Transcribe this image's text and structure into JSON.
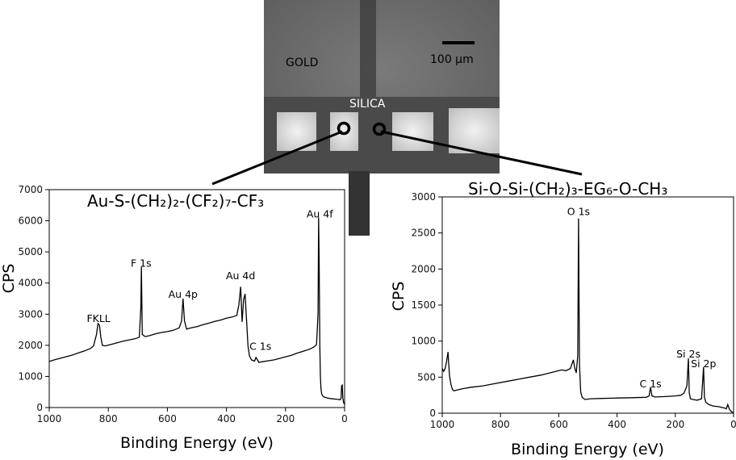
{
  "micrograph": {
    "gold_label": "GOLD",
    "silica_label": "SILICA",
    "scale_label": "100 µm"
  },
  "chart_data": [
    {
      "type": "line",
      "formula": "Au-S-(CH₂)₂-(CF₂)₇-CF₃",
      "xlabel": "Binding Energy (eV)",
      "ylabel": "CPS",
      "xlim": [
        1000,
        0
      ],
      "ylim": [
        0,
        7000
      ],
      "xticks": [
        1000,
        800,
        600,
        400,
        200,
        0
      ],
      "yticks": [
        0,
        1000,
        2000,
        3000,
        4000,
        5000,
        6000,
        7000
      ],
      "annotations": [
        {
          "text": "FKLL",
          "x": 833,
          "y": 2750
        },
        {
          "text": "F 1s",
          "x": 689,
          "y": 4520
        },
        {
          "text": "Au 4p",
          "x": 547,
          "y": 3520
        },
        {
          "text": "Au 4d",
          "x": 352,
          "y": 4120
        },
        {
          "text": "C 1s",
          "x": 285,
          "y": 1850
        },
        {
          "text": "Au 4f",
          "x": 84,
          "y": 6100
        }
      ],
      "series": [
        {
          "name": "spectrum",
          "x": [
            1000,
            980,
            960,
            940,
            920,
            900,
            880,
            860,
            850,
            840,
            835,
            830,
            825,
            820,
            810,
            790,
            770,
            750,
            730,
            710,
            695,
            690,
            688,
            685,
            675,
            660,
            640,
            620,
            600,
            580,
            560,
            552,
            547,
            542,
            535,
            520,
            500,
            480,
            460,
            440,
            420,
            400,
            380,
            365,
            358,
            352,
            347,
            342,
            337,
            333,
            327,
            322,
            315,
            305,
            300,
            290,
            280,
            260,
            240,
            220,
            200,
            180,
            160,
            140,
            120,
            105,
            95,
            90,
            88,
            86,
            84,
            82,
            80,
            78,
            75,
            70,
            60,
            50,
            40,
            30,
            20,
            15,
            12,
            10,
            8,
            6,
            3,
            0
          ],
          "y": [
            1480,
            1540,
            1590,
            1640,
            1690,
            1760,
            1820,
            1900,
            1980,
            2350,
            2700,
            2650,
            2250,
            2000,
            1980,
            2030,
            2080,
            2130,
            2170,
            2210,
            2260,
            3200,
            4520,
            2350,
            2280,
            2310,
            2370,
            2410,
            2440,
            2480,
            2560,
            2780,
            3500,
            2780,
            2520,
            2560,
            2600,
            2660,
            2710,
            2770,
            2810,
            2870,
            2910,
            2960,
            3300,
            3880,
            2750,
            3450,
            3650,
            3000,
            1980,
            1660,
            1530,
            1490,
            1610,
            1450,
            1470,
            1500,
            1530,
            1580,
            1630,
            1680,
            1750,
            1810,
            1870,
            1940,
            2020,
            3000,
            6100,
            4600,
            2000,
            1000,
            620,
            450,
            380,
            340,
            310,
            290,
            280,
            270,
            260,
            250,
            300,
            700,
            720,
            300,
            150,
            100
          ]
        }
      ]
    },
    {
      "type": "line",
      "formula": "Si-O-Si-(CH₂)₃-EG₆-O-CH₃",
      "xlabel": "Binding Energy (eV)",
      "ylabel": "CPS",
      "xlim": [
        1000,
        0
      ],
      "ylim": [
        0,
        3000
      ],
      "xticks": [
        1000,
        800,
        600,
        400,
        200,
        0
      ],
      "yticks": [
        0,
        500,
        1000,
        1500,
        2000,
        2500,
        3000
      ],
      "annotations": [
        {
          "text": "O 1s",
          "x": 532,
          "y": 2750
        },
        {
          "text": "C 1s",
          "x": 285,
          "y": 360
        },
        {
          "text": "Si 2s",
          "x": 155,
          "y": 770
        },
        {
          "text": "Si 2p",
          "x": 103,
          "y": 640
        }
      ],
      "series": [
        {
          "name": "spectrum",
          "x": [
            1000,
            995,
            990,
            985,
            980,
            978,
            975,
            970,
            965,
            960,
            950,
            930,
            900,
            860,
            820,
            780,
            740,
            700,
            660,
            620,
            590,
            575,
            560,
            550,
            545,
            540,
            535,
            532,
            529,
            525,
            520,
            510,
            490,
            450,
            400,
            350,
            300,
            290,
            285,
            280,
            270,
            240,
            200,
            180,
            170,
            160,
            155,
            152,
            148,
            140,
            125,
            110,
            103,
            100,
            95,
            85,
            70,
            50,
            30,
            25,
            20,
            15,
            10,
            5,
            0
          ],
          "y": [
            620,
            580,
            620,
            720,
            850,
            700,
            520,
            400,
            330,
            310,
            320,
            340,
            360,
            380,
            410,
            440,
            470,
            500,
            530,
            570,
            600,
            590,
            620,
            740,
            620,
            560,
            800,
            2700,
            700,
            300,
            220,
            190,
            200,
            205,
            210,
            215,
            220,
            240,
            360,
            240,
            225,
            230,
            240,
            250,
            280,
            380,
            760,
            280,
            200,
            190,
            180,
            200,
            640,
            220,
            150,
            120,
            100,
            90,
            70,
            60,
            120,
            60,
            30,
            15,
            0
          ]
        }
      ]
    }
  ]
}
